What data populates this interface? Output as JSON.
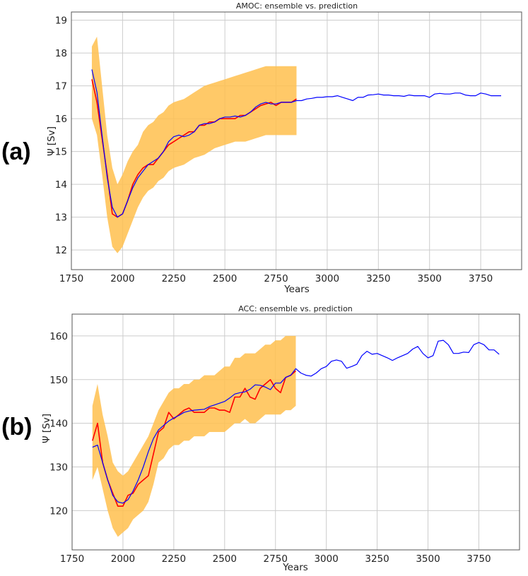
{
  "colors": {
    "band": "#ffc04d",
    "ensemble": "#ff0000",
    "prediction": "#0000ff",
    "grid": "#cccccc",
    "axis": "#555555"
  },
  "chart_data": [
    {
      "type": "line",
      "panel_label": "(a)",
      "title": "AMOC: ensemble vs. prediction",
      "xlabel": "Years",
      "ylabel": "Ψ [Sv]",
      "xlim": [
        1750,
        3950
      ],
      "ylim": [
        11.4,
        19.25
      ],
      "grid": true,
      "xticks": [
        1750,
        2000,
        2250,
        2500,
        2750,
        3000,
        3250,
        3500,
        3750
      ],
      "xtick_labels": [
        "1750",
        "2000",
        "2250",
        "2500",
        "2750",
        "3000",
        "3250",
        "3500",
        "3750"
      ],
      "yticks": [
        12,
        13,
        14,
        15,
        16,
        17,
        18,
        19
      ],
      "ytick_labels": [
        "12",
        "13",
        "14",
        "15",
        "16",
        "17",
        "18",
        "19"
      ],
      "band": {
        "x_start": 1850,
        "x_step": 25,
        "lo": [
          16.0,
          15.5,
          14.3,
          13.0,
          12.1,
          11.9,
          12.1,
          12.5,
          12.9,
          13.3,
          13.6,
          13.8,
          13.9,
          14.1,
          14.2,
          14.4,
          14.5,
          14.55,
          14.6,
          14.7,
          14.8,
          14.85,
          14.9,
          15.0,
          15.1,
          15.15,
          15.2,
          15.25,
          15.3,
          15.3,
          15.3,
          15.35,
          15.4,
          15.45,
          15.5,
          15.5,
          15.5,
          15.5,
          15.5,
          15.5,
          15.5
        ],
        "hi": [
          18.2,
          18.5,
          17.0,
          15.5,
          14.5,
          14.0,
          14.3,
          14.7,
          15.0,
          15.2,
          15.6,
          15.8,
          15.9,
          16.1,
          16.2,
          16.4,
          16.5,
          16.55,
          16.6,
          16.7,
          16.8,
          16.9,
          17.0,
          17.05,
          17.1,
          17.15,
          17.2,
          17.25,
          17.3,
          17.35,
          17.4,
          17.45,
          17.5,
          17.55,
          17.6,
          17.6,
          17.6,
          17.6,
          17.6,
          17.6,
          17.6
        ]
      },
      "ensemble": {
        "x_start": 1850,
        "x_step": 25,
        "values": [
          17.2,
          16.5,
          15.4,
          14.3,
          13.1,
          13.0,
          13.1,
          13.5,
          14.0,
          14.3,
          14.5,
          14.6,
          14.6,
          14.8,
          15.0,
          15.2,
          15.3,
          15.4,
          15.5,
          15.6,
          15.6,
          15.8,
          15.8,
          15.9,
          15.9,
          16.0,
          16.0,
          16.0,
          16.0,
          16.1,
          16.1,
          16.2,
          16.3,
          16.4,
          16.45,
          16.5,
          16.4,
          16.5,
          16.5,
          16.5,
          16.6
        ]
      },
      "prediction": {
        "x_start": 1850,
        "x_step": 25,
        "values": [
          17.5,
          16.8,
          15.5,
          14.2,
          13.3,
          13.0,
          13.1,
          13.5,
          13.9,
          14.2,
          14.4,
          14.6,
          14.7,
          14.8,
          15.0,
          15.3,
          15.45,
          15.5,
          15.45,
          15.5,
          15.6,
          15.8,
          15.85,
          15.85,
          15.9,
          16.0,
          16.05,
          16.05,
          16.08,
          16.05,
          16.1,
          16.2,
          16.35,
          16.45,
          16.5,
          16.45,
          16.45,
          16.5,
          16.5,
          16.5,
          16.55,
          16.55,
          16.6,
          16.62,
          16.65,
          16.65,
          16.67,
          16.67,
          16.7,
          16.65,
          16.6,
          16.55,
          16.65,
          16.65,
          16.72,
          16.73,
          16.75,
          16.72,
          16.72,
          16.7,
          16.7,
          16.68,
          16.72,
          16.7,
          16.7,
          16.7,
          16.65,
          16.75,
          16.77,
          16.75,
          16.75,
          16.78,
          16.78,
          16.72,
          16.7,
          16.7,
          16.78,
          16.75,
          16.7,
          16.7,
          16.7
        ]
      }
    },
    {
      "type": "line",
      "panel_label": "(b)",
      "title": "ACC: ensemble vs. prediction",
      "xlabel": "Years",
      "ylabel": "Ψ [Sv]",
      "xlim": [
        1750,
        3950
      ],
      "ylim": [
        111,
        165
      ],
      "grid": true,
      "xticks": [
        1750,
        2000,
        2250,
        2500,
        2750,
        3000,
        3250,
        3500,
        3750
      ],
      "xtick_labels": [
        "1750",
        "2000",
        "2250",
        "2500",
        "2750",
        "3000",
        "3250",
        "3500",
        "3750"
      ],
      "yticks": [
        120,
        130,
        140,
        150,
        160
      ],
      "ytick_labels": [
        "120",
        "130",
        "140",
        "150",
        "160"
      ],
      "band": {
        "x_start": 1850,
        "x_step": 25,
        "lo": [
          127,
          130,
          125,
          120,
          116,
          114,
          115,
          116,
          118,
          119,
          120,
          122,
          126,
          131,
          132,
          134,
          135,
          135,
          136,
          136,
          137,
          137,
          137,
          138,
          138,
          138,
          138,
          139,
          140,
          140,
          141,
          140,
          140,
          141,
          142,
          142,
          142,
          142,
          143,
          143,
          144
        ],
        "hi": [
          144,
          149,
          142,
          137,
          131,
          129,
          128,
          129,
          131,
          133,
          135,
          137,
          140,
          143,
          145,
          147,
          148,
          148,
          149,
          149,
          150,
          150,
          151,
          151,
          151,
          152,
          153,
          153,
          155,
          155,
          156,
          156,
          156,
          157,
          158,
          158,
          159,
          159,
          160,
          160,
          160
        ]
      },
      "ensemble": {
        "x_start": 1850,
        "x_step": 25,
        "values": [
          136,
          140,
          131,
          127,
          124,
          121,
          121,
          123.5,
          124,
          126,
          127,
          128,
          133,
          138,
          139,
          142.5,
          141,
          142,
          143,
          143.5,
          142.5,
          142.5,
          142.5,
          143.5,
          143.5,
          143,
          143,
          142.5,
          146,
          146,
          148,
          146,
          145.5,
          148,
          149,
          150,
          148,
          147,
          150.5,
          151,
          152
        ]
      },
      "prediction": {
        "x_start": 1850,
        "x_step": 25,
        "values": [
          134.5,
          135,
          131,
          127,
          123.5,
          122,
          121.7,
          122.5,
          124.5,
          127,
          130,
          133.5,
          136.5,
          138.5,
          139.5,
          140.5,
          141.2,
          141.8,
          142.5,
          142.8,
          143,
          143.1,
          143.2,
          143.8,
          144.2,
          144.6,
          145,
          145.8,
          146.7,
          147,
          147.2,
          147.8,
          148.8,
          148.7,
          148.3,
          147.7,
          149.2,
          149.2,
          150.5,
          151,
          152.5,
          151.5,
          151.0,
          150.8,
          151.5,
          152.5,
          153.0,
          154.2,
          154.5,
          154.2,
          152.6,
          153.0,
          153.5,
          155.5,
          156.5,
          155.8,
          156.0,
          155.5,
          155.0,
          154.4,
          155.0,
          155.5,
          156.0,
          157.0,
          157.6,
          156.0,
          155.0,
          155.5,
          158.8,
          159.0,
          158.0,
          156.0,
          156.0,
          156.3,
          156.2,
          158.0,
          158.5,
          158.0,
          156.8,
          156.8,
          155.8
        ]
      }
    }
  ]
}
